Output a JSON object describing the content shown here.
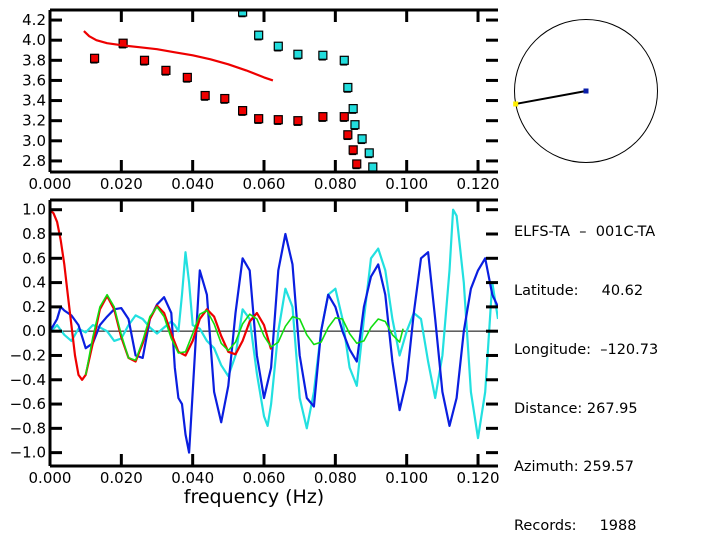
{
  "chart_data": [
    {
      "type": "scatter",
      "title": "",
      "xlabel": "",
      "ylabel": "",
      "xlim": [
        0.0,
        0.1256
      ],
      "ylim": [
        2.69,
        4.3
      ],
      "xticks": [
        "0.000",
        "0.020",
        "0.040",
        "0.060",
        "0.080",
        "0.100",
        "0.120"
      ],
      "xtick_values": [
        0.0,
        0.02,
        0.04,
        0.06,
        0.08,
        0.1,
        0.12
      ],
      "yticks": [
        "4.2",
        "4.0",
        "3.8",
        "3.6",
        "3.4",
        "3.2",
        "3.0",
        "2.8"
      ],
      "ytick_values": [
        4.2,
        4.0,
        3.8,
        3.6,
        3.4,
        3.2,
        3.0,
        2.8
      ],
      "grid": false,
      "series": [
        {
          "name": "red-points",
          "kind": "scatter",
          "color": "#ee0000",
          "x": [
            0.0125,
            0.0205,
            0.0265,
            0.0325,
            0.0385,
            0.0435,
            0.049,
            0.054,
            0.0585,
            0.064,
            0.0695,
            0.0765,
            0.0825,
            0.0835,
            0.085,
            0.086
          ],
          "y": [
            3.82,
            3.97,
            3.8,
            3.7,
            3.63,
            3.45,
            3.42,
            3.3,
            3.22,
            3.21,
            3.2,
            3.24,
            3.24,
            3.06,
            2.91,
            2.77
          ]
        },
        {
          "name": "cyan-points",
          "kind": "scatter",
          "color": "#22dddd",
          "x": [
            0.054,
            0.0585,
            0.064,
            0.0695,
            0.0765,
            0.0825,
            0.0835,
            0.085,
            0.0855,
            0.0875,
            0.0895,
            0.0905
          ],
          "y": [
            4.28,
            4.05,
            3.94,
            3.86,
            3.85,
            3.8,
            3.53,
            3.32,
            3.16,
            3.02,
            2.88,
            2.74
          ]
        },
        {
          "name": "red-curve",
          "kind": "line",
          "color": "#ee0000",
          "x": [
            0.0095,
            0.011,
            0.013,
            0.016,
            0.02,
            0.025,
            0.03,
            0.035,
            0.04,
            0.045,
            0.05,
            0.055,
            0.06,
            0.0625
          ],
          "y": [
            4.09,
            4.04,
            4.0,
            3.97,
            3.95,
            3.93,
            3.91,
            3.88,
            3.85,
            3.81,
            3.76,
            3.7,
            3.63,
            3.6
          ]
        }
      ]
    },
    {
      "type": "line",
      "title": "",
      "xlabel": "frequency (Hz)",
      "ylabel": "",
      "xlim": [
        0.0,
        0.1256
      ],
      "ylim": [
        -1.11,
        1.08
      ],
      "xticks": [
        "0.000",
        "0.020",
        "0.040",
        "0.060",
        "0.080",
        "0.100",
        "0.120"
      ],
      "xtick_values": [
        0.0,
        0.02,
        0.04,
        0.06,
        0.08,
        0.1,
        0.12
      ],
      "yticks": [
        "1.0",
        "0.8",
        "0.6",
        "0.4",
        "0.2",
        "0.0",
        "-0.2",
        "-0.4",
        "-0.6",
        "-0.8",
        "-1.0"
      ],
      "ytick_values": [
        1.0,
        0.8,
        0.6,
        0.4,
        0.2,
        0.0,
        -0.2,
        -0.4,
        -0.6,
        -0.8,
        -1.0
      ],
      "zero_line": true,
      "grid": false,
      "series": [
        {
          "name": "cyan",
          "color": "#22e0e0",
          "x": [
            0.0,
            0.002,
            0.004,
            0.006,
            0.008,
            0.01,
            0.012,
            0.014,
            0.016,
            0.018,
            0.02,
            0.022,
            0.024,
            0.026,
            0.028,
            0.03,
            0.032,
            0.034,
            0.035,
            0.036,
            0.037,
            0.038,
            0.039,
            0.04,
            0.042,
            0.044,
            0.046,
            0.048,
            0.05,
            0.052,
            0.054,
            0.056,
            0.058,
            0.06,
            0.061,
            0.062,
            0.064,
            0.066,
            0.068,
            0.07,
            0.072,
            0.074,
            0.076,
            0.078,
            0.08,
            0.082,
            0.084,
            0.086,
            0.088,
            0.09,
            0.092,
            0.094,
            0.096,
            0.098,
            0.1,
            0.102,
            0.104,
            0.106,
            0.108,
            0.11,
            0.112,
            0.113,
            0.114,
            0.116,
            0.118,
            0.12,
            0.122,
            0.124,
            0.1256
          ],
          "y": [
            -0.01,
            0.05,
            -0.03,
            -0.08,
            0.02,
            -0.01,
            0.05,
            0.03,
            0.0,
            -0.08,
            -0.06,
            0.05,
            0.13,
            0.1,
            0.03,
            -0.02,
            0.03,
            0.08,
            0.05,
            0.0,
            0.3,
            0.65,
            0.4,
            0.05,
            0.02,
            -0.08,
            -0.14,
            -0.28,
            -0.37,
            -0.2,
            0.18,
            0.1,
            -0.35,
            -0.7,
            -0.78,
            -0.6,
            0.0,
            0.35,
            0.2,
            -0.55,
            -0.8,
            -0.5,
            0.0,
            0.3,
            0.35,
            0.1,
            -0.3,
            -0.45,
            0.1,
            0.6,
            0.68,
            0.5,
            0.1,
            -0.2,
            0.0,
            0.15,
            0.1,
            -0.25,
            -0.55,
            -0.2,
            0.5,
            1.0,
            0.95,
            0.4,
            -0.5,
            -0.88,
            -0.5,
            0.4,
            0.1
          ]
        },
        {
          "name": "blue",
          "color": "#0a1ee0",
          "x": [
            0.0,
            0.001,
            0.002,
            0.003,
            0.004,
            0.006,
            0.008,
            0.01,
            0.012,
            0.014,
            0.016,
            0.018,
            0.02,
            0.022,
            0.024,
            0.026,
            0.028,
            0.03,
            0.032,
            0.034,
            0.035,
            0.036,
            0.037,
            0.038,
            0.039,
            0.04,
            0.042,
            0.044,
            0.046,
            0.048,
            0.05,
            0.052,
            0.054,
            0.056,
            0.058,
            0.06,
            0.062,
            0.064,
            0.066,
            0.068,
            0.07,
            0.072,
            0.074,
            0.076,
            0.078,
            0.08,
            0.082,
            0.084,
            0.086,
            0.088,
            0.09,
            0.092,
            0.094,
            0.096,
            0.098,
            0.1,
            0.102,
            0.104,
            0.106,
            0.108,
            0.11,
            0.112,
            0.114,
            0.116,
            0.118,
            0.12,
            0.122,
            0.124,
            0.1256
          ],
          "y": [
            0.0,
            0.05,
            0.1,
            0.2,
            0.17,
            0.13,
            0.05,
            -0.14,
            -0.1,
            0.05,
            0.12,
            0.18,
            0.19,
            0.1,
            -0.2,
            -0.22,
            0.1,
            0.22,
            0.28,
            0.15,
            -0.3,
            -0.55,
            -0.6,
            -0.85,
            -1.0,
            -0.5,
            0.5,
            0.3,
            -0.5,
            -0.75,
            -0.45,
            0.15,
            0.6,
            0.5,
            -0.2,
            -0.55,
            -0.3,
            0.5,
            0.8,
            0.55,
            -0.2,
            -0.55,
            -0.62,
            0.0,
            0.3,
            0.2,
            0.0,
            -0.15,
            -0.25,
            0.2,
            0.45,
            0.55,
            0.3,
            -0.25,
            -0.65,
            -0.4,
            0.15,
            0.6,
            0.65,
            0.1,
            -0.5,
            -0.78,
            -0.55,
            0.0,
            0.35,
            0.5,
            0.6,
            0.3,
            0.2
          ]
        },
        {
          "name": "red",
          "color": "#ee0000",
          "x": [
            0.0,
            0.001,
            0.002,
            0.003,
            0.004,
            0.005,
            0.006,
            0.007,
            0.008,
            0.009,
            0.01,
            0.012,
            0.014,
            0.016,
            0.018,
            0.02,
            0.022,
            0.024,
            0.026,
            0.028,
            0.03,
            0.032,
            0.034,
            0.036,
            0.038,
            0.04,
            0.042,
            0.044,
            0.046,
            0.048,
            0.05,
            0.052,
            0.054,
            0.056,
            0.058,
            0.06,
            0.062
          ],
          "y": [
            1.0,
            0.97,
            0.9,
            0.75,
            0.55,
            0.3,
            0.05,
            -0.2,
            -0.36,
            -0.4,
            -0.36,
            -0.1,
            0.18,
            0.29,
            0.18,
            -0.05,
            -0.22,
            -0.25,
            -0.1,
            0.1,
            0.21,
            0.15,
            -0.02,
            -0.17,
            -0.2,
            -0.08,
            0.1,
            0.18,
            0.12,
            -0.04,
            -0.17,
            -0.19,
            -0.08,
            0.08,
            0.15,
            0.05,
            -0.15
          ]
        },
        {
          "name": "green",
          "color": "#11dd11",
          "x": [
            0.01,
            0.012,
            0.014,
            0.016,
            0.018,
            0.02,
            0.022,
            0.024,
            0.026,
            0.028,
            0.03,
            0.032,
            0.034,
            0.036,
            0.038,
            0.04,
            0.042,
            0.044,
            0.046,
            0.048,
            0.05,
            0.052,
            0.054,
            0.056,
            0.058,
            0.06,
            0.062,
            0.064,
            0.066,
            0.068,
            0.07,
            0.072,
            0.074,
            0.076,
            0.078,
            0.08,
            0.082,
            0.084,
            0.086,
            0.088,
            0.09,
            0.092,
            0.094,
            0.096,
            0.098,
            0.099
          ],
          "y": [
            -0.36,
            -0.05,
            0.2,
            0.3,
            0.2,
            -0.03,
            -0.22,
            -0.24,
            -0.08,
            0.12,
            0.2,
            0.12,
            -0.06,
            -0.18,
            -0.17,
            -0.02,
            0.14,
            0.17,
            0.06,
            -0.1,
            -0.16,
            -0.09,
            0.06,
            0.14,
            0.1,
            -0.04,
            -0.13,
            -0.09,
            0.04,
            0.12,
            0.1,
            -0.03,
            -0.11,
            -0.09,
            0.03,
            0.11,
            0.1,
            -0.02,
            -0.1,
            -0.08,
            0.03,
            0.1,
            0.08,
            -0.03,
            -0.09,
            0.02
          ]
        }
      ]
    }
  ],
  "map": {
    "station_marker_color": "#0a1eaa",
    "event_marker_color": "#ffee00",
    "azimuth_deg": 259.57
  },
  "info": {
    "title": "ELFS-TA  –  001C-TA",
    "latitude": "Latitude:     40.62",
    "longitude": "Longitude:  –120.73",
    "distance": "Distance: 267.95",
    "azimuth": "Azimuth: 259.57",
    "records": "Records:     1988"
  }
}
